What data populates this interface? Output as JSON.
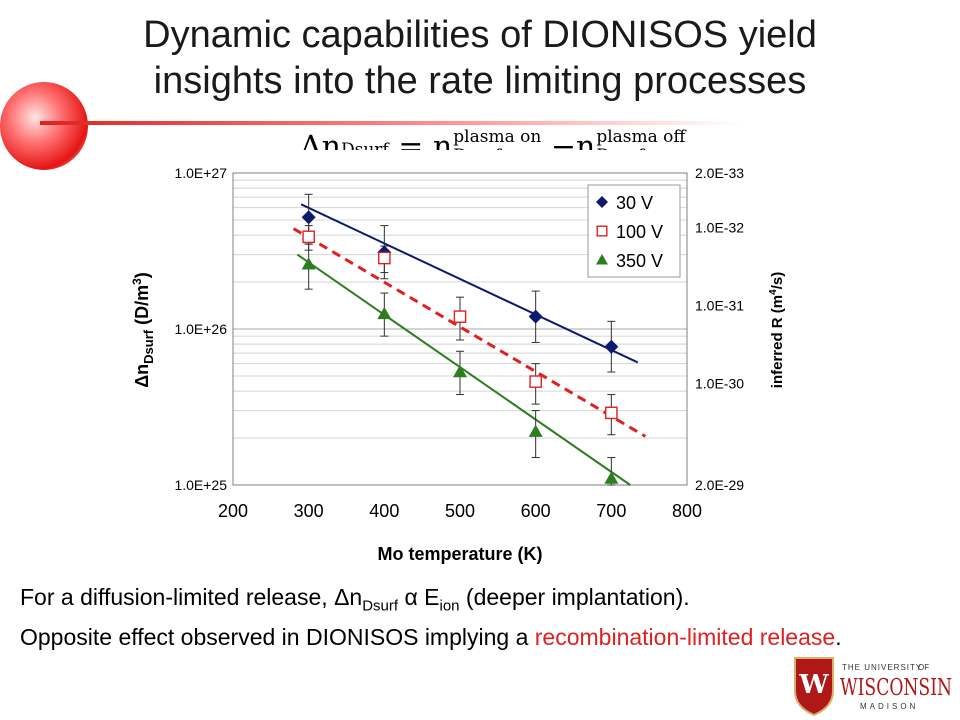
{
  "slide": {
    "title_line1": "Dynamic capabilities of DIONISOS yield",
    "title_line2": "insights into the rate limiting processes"
  },
  "equation": {
    "lhs_symbol": "Δn",
    "lhs_sub": "Dsurf",
    "equals": "=",
    "term1": "n",
    "term1_sup": "plasma on",
    "term1_sub": "Dsurf",
    "minus": "−",
    "term2": "n",
    "term2_sup": "plasma off",
    "term2_sub": "Dsurf"
  },
  "chart_data": {
    "type": "scatter",
    "xlabel": "Mo temperature (K)",
    "ylabel": "Δn",
    "ylabel_sub": "Dsurf",
    "ylabel_unit": " (D/m",
    "ylabel_unit_sup": "3",
    "ylabel_unit_end": ")",
    "y2label": "inferred R (m",
    "y2label_sup": "4",
    "y2label_end": "/s)",
    "xlim": [
      200,
      800
    ],
    "x_ticks": [
      "200",
      "300",
      "400",
      "500",
      "600",
      "700",
      "800"
    ],
    "x_tick_values": [
      200,
      300,
      400,
      500,
      600,
      700,
      800
    ],
    "y_scale": "log",
    "ylim": [
      1e+25,
      1e+27
    ],
    "y_ticks": [
      "1.0E+25",
      "1.0E+26",
      "1.0E+27"
    ],
    "y_tick_values": [
      1e+25,
      1e+26,
      1e+27
    ],
    "y2_scale": "log-reciprocal",
    "y2_ticks": [
      "2.0E-33",
      "1.0E-32",
      "1.0E-31",
      "1.0E-30",
      "2.0E-29"
    ],
    "y2_tick_values": [
      2e-33,
      1e-32,
      1e-31,
      1e-30,
      2e-29
    ],
    "grid": true,
    "legend_position": "top-right",
    "series": [
      {
        "name": "30 V",
        "marker": "diamond",
        "color": "#0d1b6e",
        "line_color": "#0d1b6e",
        "line_style": "solid",
        "x": [
          300,
          400,
          600,
          700
        ],
        "y": [
          5.2e+26,
          3.1e+26,
          1.2e+26,
          7.7e+25
        ],
        "y_lo": [
          3.5e+26,
          2.1e+26,
          8.2e+25,
          5.3e+25
        ],
        "y_hi": [
          7.3e+26,
          4.6e+26,
          1.75e+26,
          1.12e+26
        ],
        "fit_x": [
          290,
          735
        ],
        "fit_y": [
          6.3e+26,
          6.1e+25
        ]
      },
      {
        "name": "100 V",
        "marker": "square-open",
        "color": "#e02020",
        "line_color": "#e02020",
        "line_style": "dashed",
        "x": [
          300,
          400,
          500,
          600,
          700
        ],
        "y": [
          3.9e+26,
          2.85e+26,
          1.2e+26,
          4.6e+25,
          2.9e+25
        ],
        "y_lo": [
          3.2e+26,
          2.3e+26,
          8.5e+25,
          3.3e+25,
          2.1e+25
        ],
        "y_hi": [
          4.6e+26,
          3.4e+26,
          1.6e+26,
          6e+25,
          3.8e+25
        ],
        "fit_x": [
          280,
          745
        ],
        "fit_y": [
          4.4e+26,
          2.05e+25
        ]
      },
      {
        "name": "350 V",
        "marker": "triangle",
        "color": "#2e7d1e",
        "line_color": "#2e7d1e",
        "line_style": "solid",
        "x": [
          300,
          400,
          500,
          600,
          700
        ],
        "y": [
          2.6e+26,
          1.25e+26,
          5.3e+25,
          2.2e+25,
          1.1e+25
        ],
        "y_lo": [
          1.8e+26,
          9e+25,
          3.8e+25,
          1.5e+25,
          1e+25
        ],
        "y_hi": [
          3.5e+26,
          1.7e+26,
          7.2e+25,
          3e+25,
          1.5e+25
        ],
        "fit_x": [
          285,
          725
        ],
        "fit_y": [
          3e+26,
          1e+25
        ]
      }
    ]
  },
  "caption": {
    "l1_a": "For a diffusion-limited release, ",
    "l1_delta": "Δn",
    "l1_sub": "Dsurf",
    "l1_alpha": " α E",
    "l1_ion": "ion",
    "l1_b": " (deeper implantation).",
    "l2": "Opposite effect observed in DIONISOS implying a ",
    "red": "recombination-limited release",
    "end": "."
  },
  "logo": {
    "line1": "THE UNIVERSITY",
    "line2": "OF",
    "name": "WISCONSIN",
    "line3": "MADISON",
    "crest": "W"
  },
  "colors": {
    "accent": "#e02020",
    "navy": "#0d1b6e",
    "green": "#2e7d1e"
  }
}
